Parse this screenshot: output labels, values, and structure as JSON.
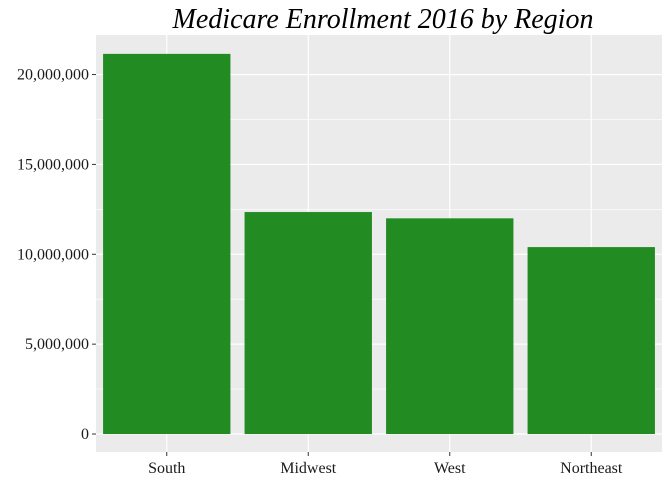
{
  "chart_data": {
    "type": "bar",
    "title": "Medicare Enrollment 2016 by Region",
    "xlabel": "",
    "ylabel": "",
    "categories": [
      "South",
      "Midwest",
      "West",
      "Northeast"
    ],
    "values": [
      21150000,
      12350000,
      12000000,
      10400000
    ],
    "ylim": [
      -1000000,
      22200000
    ],
    "y_ticks": [
      0,
      5000000,
      10000000,
      15000000,
      20000000
    ],
    "y_tick_labels": [
      "0",
      "5,000,000",
      "10,000,000",
      "15,000,000",
      "20,000,000"
    ],
    "grid": true,
    "legend": "none",
    "colors": {
      "bar": "#228B22",
      "panel": "#EBEBEB",
      "grid": "#FFFFFF"
    }
  }
}
